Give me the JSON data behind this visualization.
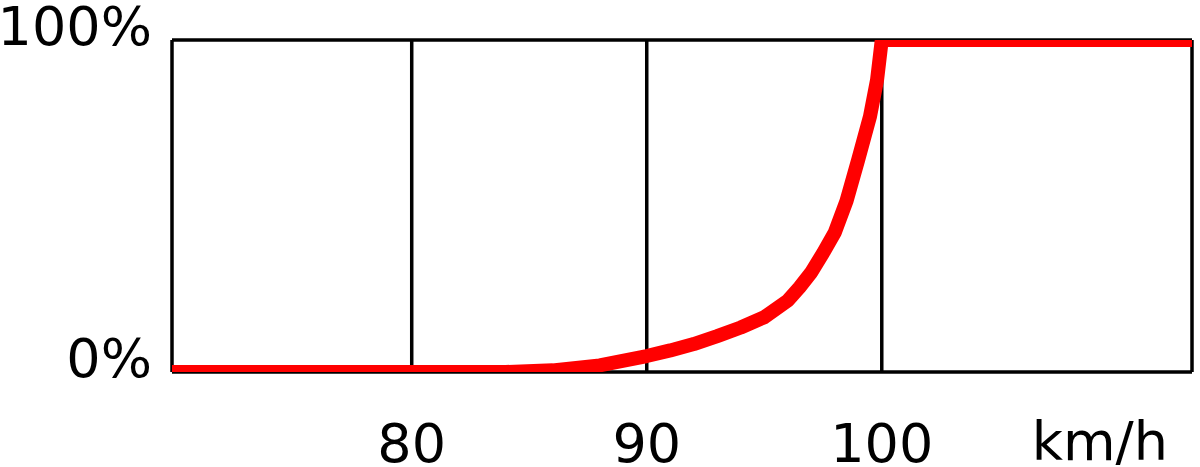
{
  "chart_data": {
    "type": "line",
    "xlabel": "km/h",
    "x": [
      69.8,
      80,
      84,
      86,
      88,
      90,
      91,
      92,
      93,
      94,
      95,
      96,
      96.5,
      97,
      97.5,
      98,
      98.5,
      99,
      99.5,
      99.8,
      100,
      113.2
    ],
    "series": [
      {
        "color": "#ff0000",
        "values": [
          0,
          0,
          0,
          0.5,
          2,
          4.8,
          6.5,
          8.4,
          10.8,
          13.4,
          16.5,
          21.5,
          25.5,
          30,
          35.8,
          42,
          51.5,
          64,
          77,
          88,
          100,
          100
        ]
      }
    ],
    "xlim": [
      69.8,
      113.2
    ],
    "ylim": [
      0,
      100
    ],
    "xticks": [
      80,
      90,
      100
    ],
    "yticks": [
      {
        "value": 0,
        "label": "0%"
      },
      {
        "value": 100,
        "label": "100%"
      }
    ],
    "grid": true
  }
}
